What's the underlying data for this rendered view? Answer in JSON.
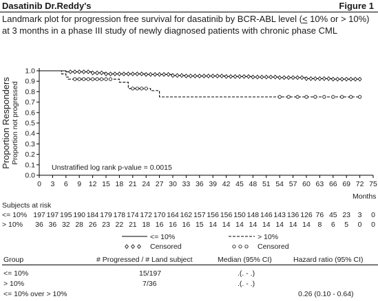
{
  "header": {
    "title": "Dasatinib Dr.Reddy's",
    "figure_label": "Figure 1",
    "caption_pre": "Landmark plot for progression free survival for dasatinib by BCR-ABL level (",
    "caption_le": "<",
    "caption_post": " 10% or > 10%) at 3 months in a phase III study of newly diagnosed patients with chronic phase CML"
  },
  "chart_data": {
    "type": "line",
    "title": "",
    "ylabel_outer": "Proportion Responders",
    "ylabel_inner": "Proportion not progressed",
    "xlabel": "Months",
    "xlim": [
      0,
      75
    ],
    "ylim": [
      0.0,
      1.0
    ],
    "x_ticks": [
      0,
      3,
      6,
      9,
      12,
      15,
      18,
      21,
      24,
      27,
      30,
      33,
      36,
      39,
      42,
      45,
      48,
      51,
      54,
      57,
      60,
      63,
      66,
      69,
      72,
      75
    ],
    "y_ticks": [
      "0.0",
      "0.1",
      "0.2",
      "0.3",
      "0.4",
      "0.5",
      "0.6",
      "0.7",
      "0.8",
      "0.9",
      "1.0"
    ],
    "grid": false,
    "annotation": "Unstratified log rank p-value = 0.0015",
    "series": [
      {
        "name": "<= 10%",
        "line_style": "solid",
        "censor_marker": "diamond",
        "steps": [
          [
            0,
            1.0
          ],
          [
            6,
            0.99
          ],
          [
            12,
            0.98
          ],
          [
            15,
            0.97
          ],
          [
            24,
            0.965
          ],
          [
            30,
            0.955
          ],
          [
            33,
            0.95
          ],
          [
            42,
            0.945
          ],
          [
            48,
            0.94
          ],
          [
            54,
            0.935
          ],
          [
            60,
            0.925
          ],
          [
            66,
            0.92
          ],
          [
            72,
            0.92
          ]
        ],
        "censored": [
          7,
          8,
          9,
          10,
          11,
          12,
          13,
          14,
          15,
          16,
          17,
          18,
          19,
          20,
          21,
          22,
          23,
          24,
          25,
          26,
          27,
          28,
          29,
          30,
          31,
          32,
          33,
          34,
          35,
          36,
          37,
          38,
          39,
          40,
          41,
          42,
          43,
          44,
          45,
          46,
          47,
          48,
          49,
          50,
          51,
          52,
          53,
          54,
          55,
          56,
          57,
          58,
          59,
          60,
          61,
          62,
          63,
          64,
          65,
          66,
          67,
          68,
          69,
          70,
          71,
          72
        ]
      },
      {
        "name": "> 10%",
        "line_style": "dashed",
        "censor_marker": "circle",
        "steps": [
          [
            0,
            1.0
          ],
          [
            5,
            0.97
          ],
          [
            6,
            0.94
          ],
          [
            6.5,
            0.92
          ],
          [
            18,
            0.89
          ],
          [
            20,
            0.83
          ],
          [
            25,
            0.81
          ],
          [
            27,
            0.75
          ],
          [
            72,
            0.75
          ]
        ],
        "censored": [
          8,
          9,
          10,
          11,
          12,
          13,
          14,
          15,
          16,
          21,
          22,
          23,
          24,
          54,
          56,
          58,
          60,
          62,
          64,
          66,
          68,
          70,
          72
        ]
      }
    ],
    "legend": {
      "placement": "bottom",
      "items": [
        {
          "label": "<= 10%",
          "style": "solid"
        },
        {
          "label": "> 10%",
          "style": "dashed"
        },
        {
          "label": "Censored",
          "style": "diamond"
        },
        {
          "label": "Censored",
          "style": "circle"
        }
      ]
    },
    "risk_table": {
      "title": "Subjects at risk",
      "rows": [
        {
          "label": "<= 10%",
          "values": [
            "197",
            "197",
            "195",
            "190",
            "184",
            "179",
            "178",
            "174",
            "172",
            "170",
            "164",
            "162",
            "157",
            "156",
            "156",
            "150",
            "148",
            "146",
            "143",
            "136",
            "126",
            "76",
            "45",
            "23",
            "3",
            "0"
          ]
        },
        {
          "label": "> 10%",
          "values": [
            "36",
            "36",
            "32",
            "28",
            "26",
            "23",
            "22",
            "21",
            "18",
            "16",
            "16",
            "16",
            "15",
            "14",
            "14",
            "14",
            "14",
            "14",
            "14",
            "14",
            "14",
            "8",
            "6",
            "5",
            "0",
            "0"
          ]
        }
      ]
    }
  },
  "summary_table": {
    "headers": [
      "Group",
      "# Progressed / # Land subject",
      "Median (95% CI)",
      "Hazard ratio (95% CI)"
    ],
    "rows": [
      [
        "<= 10%",
        "15/197",
        ".(. - .)",
        ""
      ],
      [
        "> 10%",
        "7/36",
        ".(. - .)",
        ""
      ],
      [
        "<= 10% over > 10%",
        "",
        "",
        "0.26 (0.10 - 0.64)"
      ]
    ]
  }
}
